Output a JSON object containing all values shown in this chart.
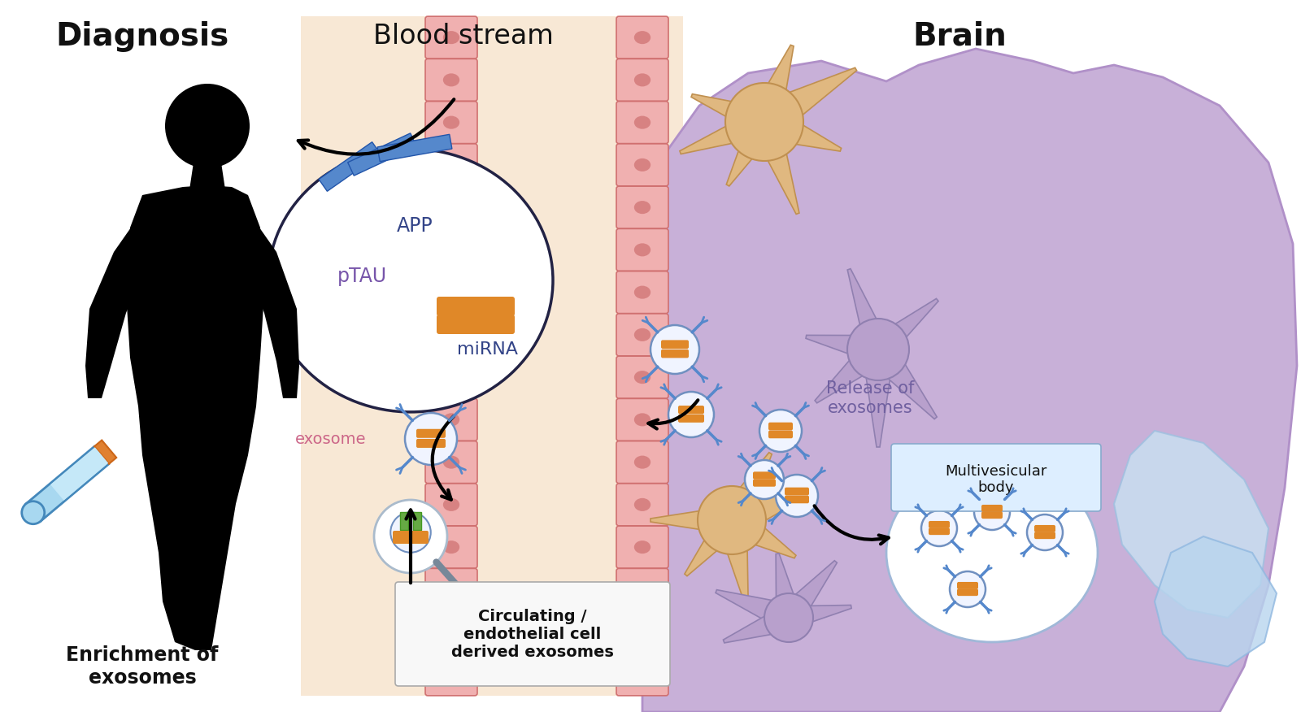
{
  "bg_color": "#ffffff",
  "diagnosis_label": "Diagnosis",
  "bloodstream_label": "Blood stream",
  "brain_label": "Brain",
  "enrichment_label": "Enrichment of\nexosomes",
  "exosome_label": "exosome",
  "app_label": "APP",
  "ptau_label": "pTAU",
  "mirna_label": "miRNA",
  "release_label": "Release of\nexosomes",
  "circulating_label": "Circulating /\nendothelial cell\nderived exosomes",
  "multivesicular_label": "Multivesicular\nbody",
  "bloodstream_bg": "#f8e8d5",
  "vessel_color": "#f0b0b0",
  "vessel_cell_color": "#d07070",
  "vessel_dot_color": "#c05555",
  "brain_color": "#c8b0d8",
  "brain_edge": "#b090c8",
  "neuron_tan": "#e0b880",
  "neuron_tan_edge": "#c09050",
  "neuron_purple": "#b8a0cc",
  "neuron_purple_edge": "#9080b0",
  "exo_bg": "#f0f4ff",
  "exo_edge": "#7090c0",
  "mvb_bg": "#f5f8ff",
  "mvb_edge": "#a0b8d8",
  "blue_bar": "#5588cc",
  "orange_rna": "#e08828",
  "green_prot": "#66aa44",
  "label_dark": "#111111",
  "label_mid": "#666666",
  "label_purple": "#7060a0",
  "tube_liquid": "#a8d8f0",
  "tube_cap": "#e08030",
  "tube_edge": "#4488bb",
  "mvb_label_bg": "#ddeeff",
  "mvb_label_edge": "#88aacc",
  "circ_label_bg": "#f8f8f8",
  "circ_label_edge": "#aaaaaa"
}
